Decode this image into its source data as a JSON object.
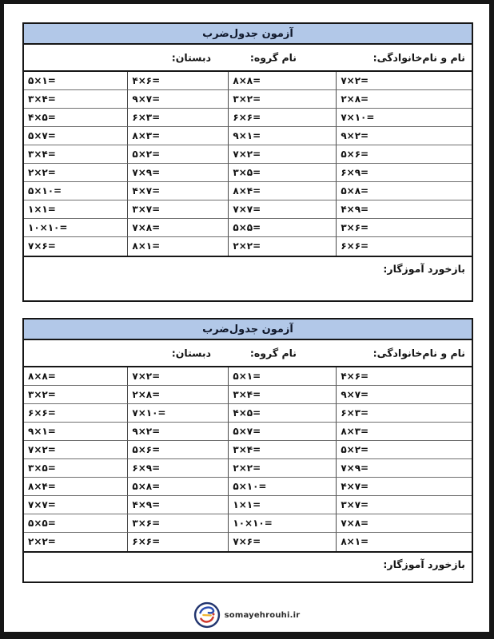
{
  "labels": {
    "title": "آزمون جدول‌ضرب",
    "name": "نام و نام‌خانوادگی:",
    "group": "نام گروه:",
    "school": "دبستان:",
    "feedback": "بازخورد آموزگار:"
  },
  "tables": [
    {
      "title": "آزمون جدول‌ضرب",
      "rows": [
        [
          "۷×۲=",
          "۸×۸=",
          "۴×۶=",
          "۵×۱="
        ],
        [
          "۲×۸=",
          "۳×۲=",
          "۹×۷=",
          "۳×۴="
        ],
        [
          "۷×۱۰=",
          "۶×۶=",
          "۶×۳=",
          "۴×۵="
        ],
        [
          "۹×۲=",
          "۹×۱=",
          "۸×۳=",
          "۵×۷="
        ],
        [
          "۵×۶=",
          "۷×۲=",
          "۵×۲=",
          "۳×۴="
        ],
        [
          "۶×۹=",
          "۳×۵=",
          "۷×۹=",
          "۲×۲="
        ],
        [
          "۵×۸=",
          "۸×۴=",
          "۴×۷=",
          "۵×۱۰="
        ],
        [
          "۴×۹=",
          "۷×۷=",
          "۳×۷=",
          "۱×۱="
        ],
        [
          "۳×۶=",
          "۵×۵=",
          "۷×۸=",
          "۱۰×۱۰="
        ],
        [
          "۶×۶=",
          "۲×۲=",
          "۸×۱=",
          "۷×۶="
        ]
      ]
    },
    {
      "title": "آزمون جدول‌ضرب",
      "rows": [
        [
          "۴×۶=",
          "۵×۱=",
          "۷×۲=",
          "۸×۸="
        ],
        [
          "۹×۷=",
          "۳×۴=",
          "۲×۸=",
          "۳×۲="
        ],
        [
          "۶×۳=",
          "۴×۵=",
          "۷×۱۰=",
          "۶×۶="
        ],
        [
          "۸×۳=",
          "۵×۷=",
          "۹×۲=",
          "۹×۱="
        ],
        [
          "۵×۲=",
          "۳×۴=",
          "۵×۶=",
          "۷×۲="
        ],
        [
          "۷×۹=",
          "۲×۲=",
          "۶×۹=",
          "۳×۵="
        ],
        [
          "۴×۷=",
          "۵×۱۰=",
          "۵×۸=",
          "۸×۴="
        ],
        [
          "۳×۷=",
          "۱×۱=",
          "۴×۹=",
          "۷×۷="
        ],
        [
          "۷×۸=",
          "۱۰×۱۰=",
          "۳×۶=",
          "۵×۵="
        ],
        [
          "۸×۱=",
          "۷×۶=",
          "۶×۶=",
          "۲×۲="
        ]
      ]
    }
  ],
  "footer": {
    "website": "somayehrouhi.ir",
    "logo": "somayehrouhi-logo"
  },
  "colors": {
    "header_bg": "#b2c8e8",
    "frame": "#161616",
    "logo_navy": "#22356f",
    "logo_blue": "#2b4db0",
    "logo_red": "#cf392d",
    "logo_yellow": "#f2b632"
  }
}
